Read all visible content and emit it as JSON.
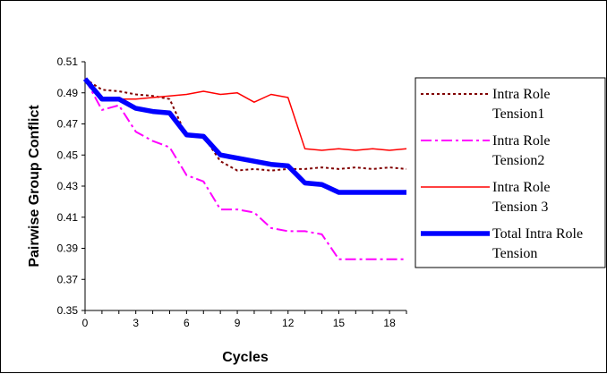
{
  "chart_data": {
    "type": "line",
    "xlabel": "Cycles",
    "ylabel": "Pairwise Group Conflict",
    "xlim": [
      0,
      19
    ],
    "ylim": [
      0.35,
      0.51
    ],
    "x_ticks": [
      0,
      3,
      6,
      9,
      12,
      15,
      18
    ],
    "y_ticks": [
      0.35,
      0.37,
      0.39,
      0.41,
      0.43,
      0.45,
      0.47,
      0.49,
      0.51
    ],
    "y_tick_labels": [
      "0.35",
      "0.37",
      "0.39",
      "0.41",
      "0.43",
      "0.45",
      "0.47",
      "0.49",
      "0.51"
    ],
    "grid": false,
    "legend_position": "right",
    "x": [
      0,
      1,
      2,
      3,
      4,
      5,
      6,
      7,
      8,
      9,
      10,
      11,
      12,
      13,
      14,
      15,
      16,
      17,
      18,
      19
    ],
    "series": [
      {
        "name_lines": [
          "Intra Role",
          "Tension1"
        ],
        "color": "#800000",
        "style": "dotted",
        "values": [
          0.499,
          0.492,
          0.491,
          0.489,
          0.488,
          0.486,
          0.462,
          0.462,
          0.446,
          0.44,
          0.441,
          0.44,
          0.441,
          0.441,
          0.442,
          0.441,
          0.442,
          0.441,
          0.442,
          0.441
        ]
      },
      {
        "name_lines": [
          "Intra Role",
          "Tension2"
        ],
        "color": "#ff00ff",
        "style": "dashdot",
        "values": [
          0.499,
          0.479,
          0.482,
          0.465,
          0.459,
          0.455,
          0.437,
          0.433,
          0.415,
          0.415,
          0.413,
          0.403,
          0.401,
          0.401,
          0.399,
          0.383,
          0.383,
          0.383,
          0.383,
          0.383
        ]
      },
      {
        "name_lines": [
          "Intra Role",
          "Tension 3"
        ],
        "color": "#ff0000",
        "style": "solid",
        "values": [
          0.499,
          0.486,
          0.486,
          0.486,
          0.487,
          0.488,
          0.489,
          0.491,
          0.489,
          0.49,
          0.484,
          0.489,
          0.487,
          0.454,
          0.453,
          0.454,
          0.453,
          0.454,
          0.453,
          0.454
        ]
      },
      {
        "name_lines": [
          "Total Intra Role",
          "Tension"
        ],
        "color": "#0000ff",
        "style": "thick",
        "values": [
          0.499,
          0.486,
          0.486,
          0.48,
          0.478,
          0.477,
          0.463,
          0.462,
          0.45,
          0.448,
          0.446,
          0.444,
          0.443,
          0.432,
          0.431,
          0.426,
          0.426,
          0.426,
          0.426,
          0.426
        ]
      }
    ]
  }
}
